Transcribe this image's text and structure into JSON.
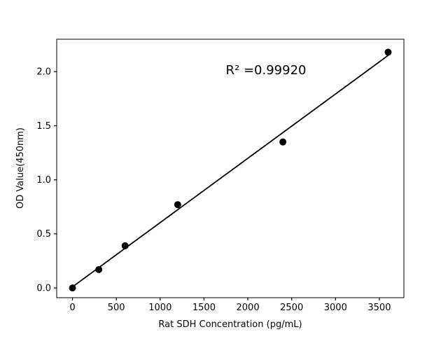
{
  "chart_data": {
    "type": "scatter",
    "title": "",
    "xlabel": "Rat SDH Concentration (pg/mL)",
    "ylabel": "OD Value(450nm)",
    "annotation": "R² =0.99920",
    "x": [
      0,
      300,
      600,
      1200,
      2400,
      3600
    ],
    "y": [
      0.0,
      0.17,
      0.39,
      0.77,
      1.35,
      2.18
    ],
    "fit_line": {
      "x": [
        0,
        3600
      ],
      "y": [
        0.01,
        2.15
      ]
    },
    "xlim": [
      -180,
      3780
    ],
    "ylim": [
      -0.09,
      2.3
    ],
    "xticks": [
      0,
      500,
      1000,
      1500,
      2000,
      2500,
      3000,
      3500
    ],
    "xtick_labels": [
      "0",
      "500",
      "1000",
      "1500",
      "2000",
      "2500",
      "3000",
      "3500"
    ],
    "yticks": [
      0.0,
      0.5,
      1.0,
      1.5,
      2.0
    ],
    "ytick_labels": [
      "0.0",
      "0.5",
      "1.0",
      "1.5",
      "2.0"
    ],
    "grid": false,
    "legend": null,
    "marker_color": "#000000",
    "line_color": "#000000",
    "frame_color": "#000000",
    "background_color": "#ffffff"
  }
}
